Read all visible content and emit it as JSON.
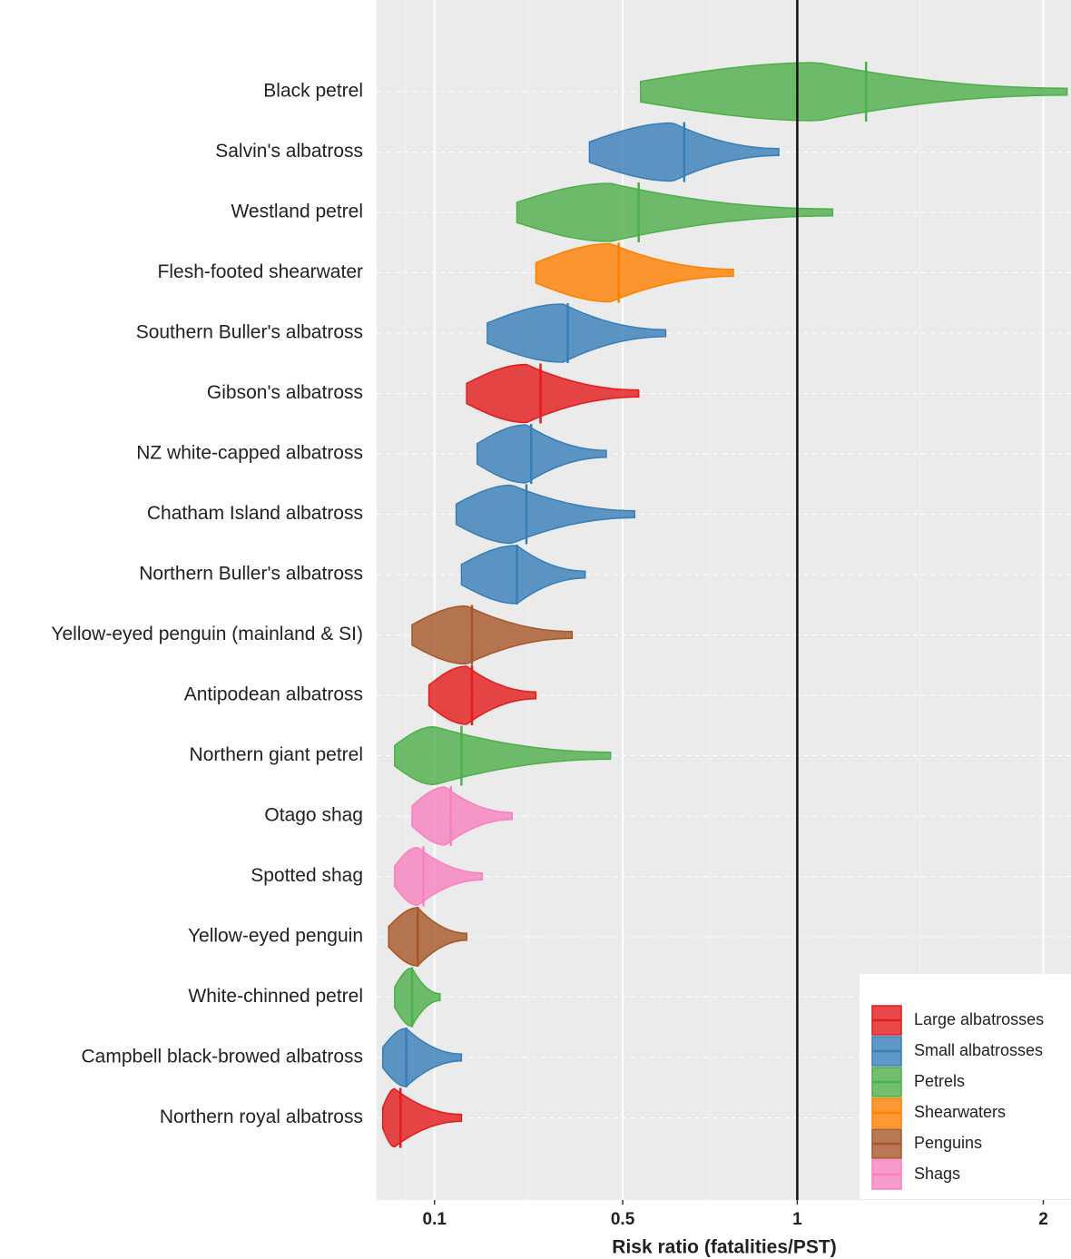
{
  "chart_data": {
    "type": "violin",
    "x_label": "Risk ratio (fatalities/PST)",
    "xscale": "log1p",
    "xlim": [
      0,
      2.14
    ],
    "xticks": [
      0.1,
      0.5,
      1,
      2
    ],
    "vline": 1,
    "grid": true,
    "legend_position": "bottom-right",
    "series": [
      {
        "name": "Large albatrosses",
        "color": "#e41a1c"
      },
      {
        "name": "Small albatrosses",
        "color": "#377eb8"
      },
      {
        "name": "Petrels",
        "color": "#4daf4a"
      },
      {
        "name": "Shearwaters",
        "color": "#ff7f00"
      },
      {
        "name": "Penguins",
        "color": "#a65628"
      },
      {
        "name": "Shags",
        "color": "#f781bf"
      }
    ],
    "rows": [
      {
        "label": "Black petrel",
        "group": "Petrels",
        "min": 0.545,
        "mode": 1.07,
        "median": 1.24,
        "max": 2.12
      },
      {
        "label": "Salvin's albatross",
        "group": "Small albatrosses",
        "min": 0.42,
        "mode": 0.63,
        "median": 0.66,
        "max": 0.94
      },
      {
        "label": "Westland petrel",
        "group": "Petrels",
        "min": 0.26,
        "mode": 0.47,
        "median": 0.54,
        "max": 1.12
      },
      {
        "label": "Flesh-footed shearwater",
        "group": "Shearwaters",
        "min": 0.3,
        "mode": 0.47,
        "median": 0.49,
        "max": 0.8
      },
      {
        "label": "Southern Buller's albatross",
        "group": "Small albatrosses",
        "min": 0.2,
        "mode": 0.36,
        "median": 0.37,
        "max": 0.61
      },
      {
        "label": "Gibson's albatross",
        "group": "Large albatrosses",
        "min": 0.16,
        "mode": 0.28,
        "median": 0.31,
        "max": 0.54
      },
      {
        "label": "NZ white-capped albatross",
        "group": "Small albatrosses",
        "min": 0.18,
        "mode": 0.28,
        "median": 0.29,
        "max": 0.46
      },
      {
        "label": "Chatham Island albatross",
        "group": "Small albatrosses",
        "min": 0.14,
        "mode": 0.25,
        "median": 0.28,
        "max": 0.53
      },
      {
        "label": "Northern Buller's albatross",
        "group": "Small albatrosses",
        "min": 0.15,
        "mode": 0.26,
        "median": 0.26,
        "max": 0.41
      },
      {
        "label": "Yellow-eyed penguin (mainland & SI)",
        "group": "Penguins",
        "min": 0.06,
        "mode": 0.16,
        "median": 0.17,
        "max": 0.38
      },
      {
        "label": "Antipodean albatross",
        "group": "Large albatrosses",
        "min": 0.09,
        "mode": 0.16,
        "median": 0.17,
        "max": 0.3
      },
      {
        "label": "Northern giant petrel",
        "group": "Petrels",
        "min": 0.03,
        "mode": 0.1,
        "median": 0.15,
        "max": 0.47
      },
      {
        "label": "Otago shag",
        "group": "Shags",
        "min": 0.06,
        "mode": 0.12,
        "median": 0.13,
        "max": 0.25
      },
      {
        "label": "Spotted shag",
        "group": "Shags",
        "min": 0.03,
        "mode": 0.07,
        "median": 0.08,
        "max": 0.19
      },
      {
        "label": "Yellow-eyed penguin",
        "group": "Penguins",
        "min": 0.02,
        "mode": 0.07,
        "median": 0.07,
        "max": 0.16
      },
      {
        "label": "White-chinned petrel",
        "group": "Petrels",
        "min": 0.03,
        "mode": 0.06,
        "median": 0.06,
        "max": 0.11
      },
      {
        "label": "Campbell black-browed albatross",
        "group": "Small albatrosses",
        "min": 0.01,
        "mode": 0.05,
        "median": 0.05,
        "max": 0.15
      },
      {
        "label": "Northern royal albatross",
        "group": "Large albatrosses",
        "min": 0.01,
        "mode": 0.03,
        "median": 0.04,
        "max": 0.15
      }
    ]
  }
}
